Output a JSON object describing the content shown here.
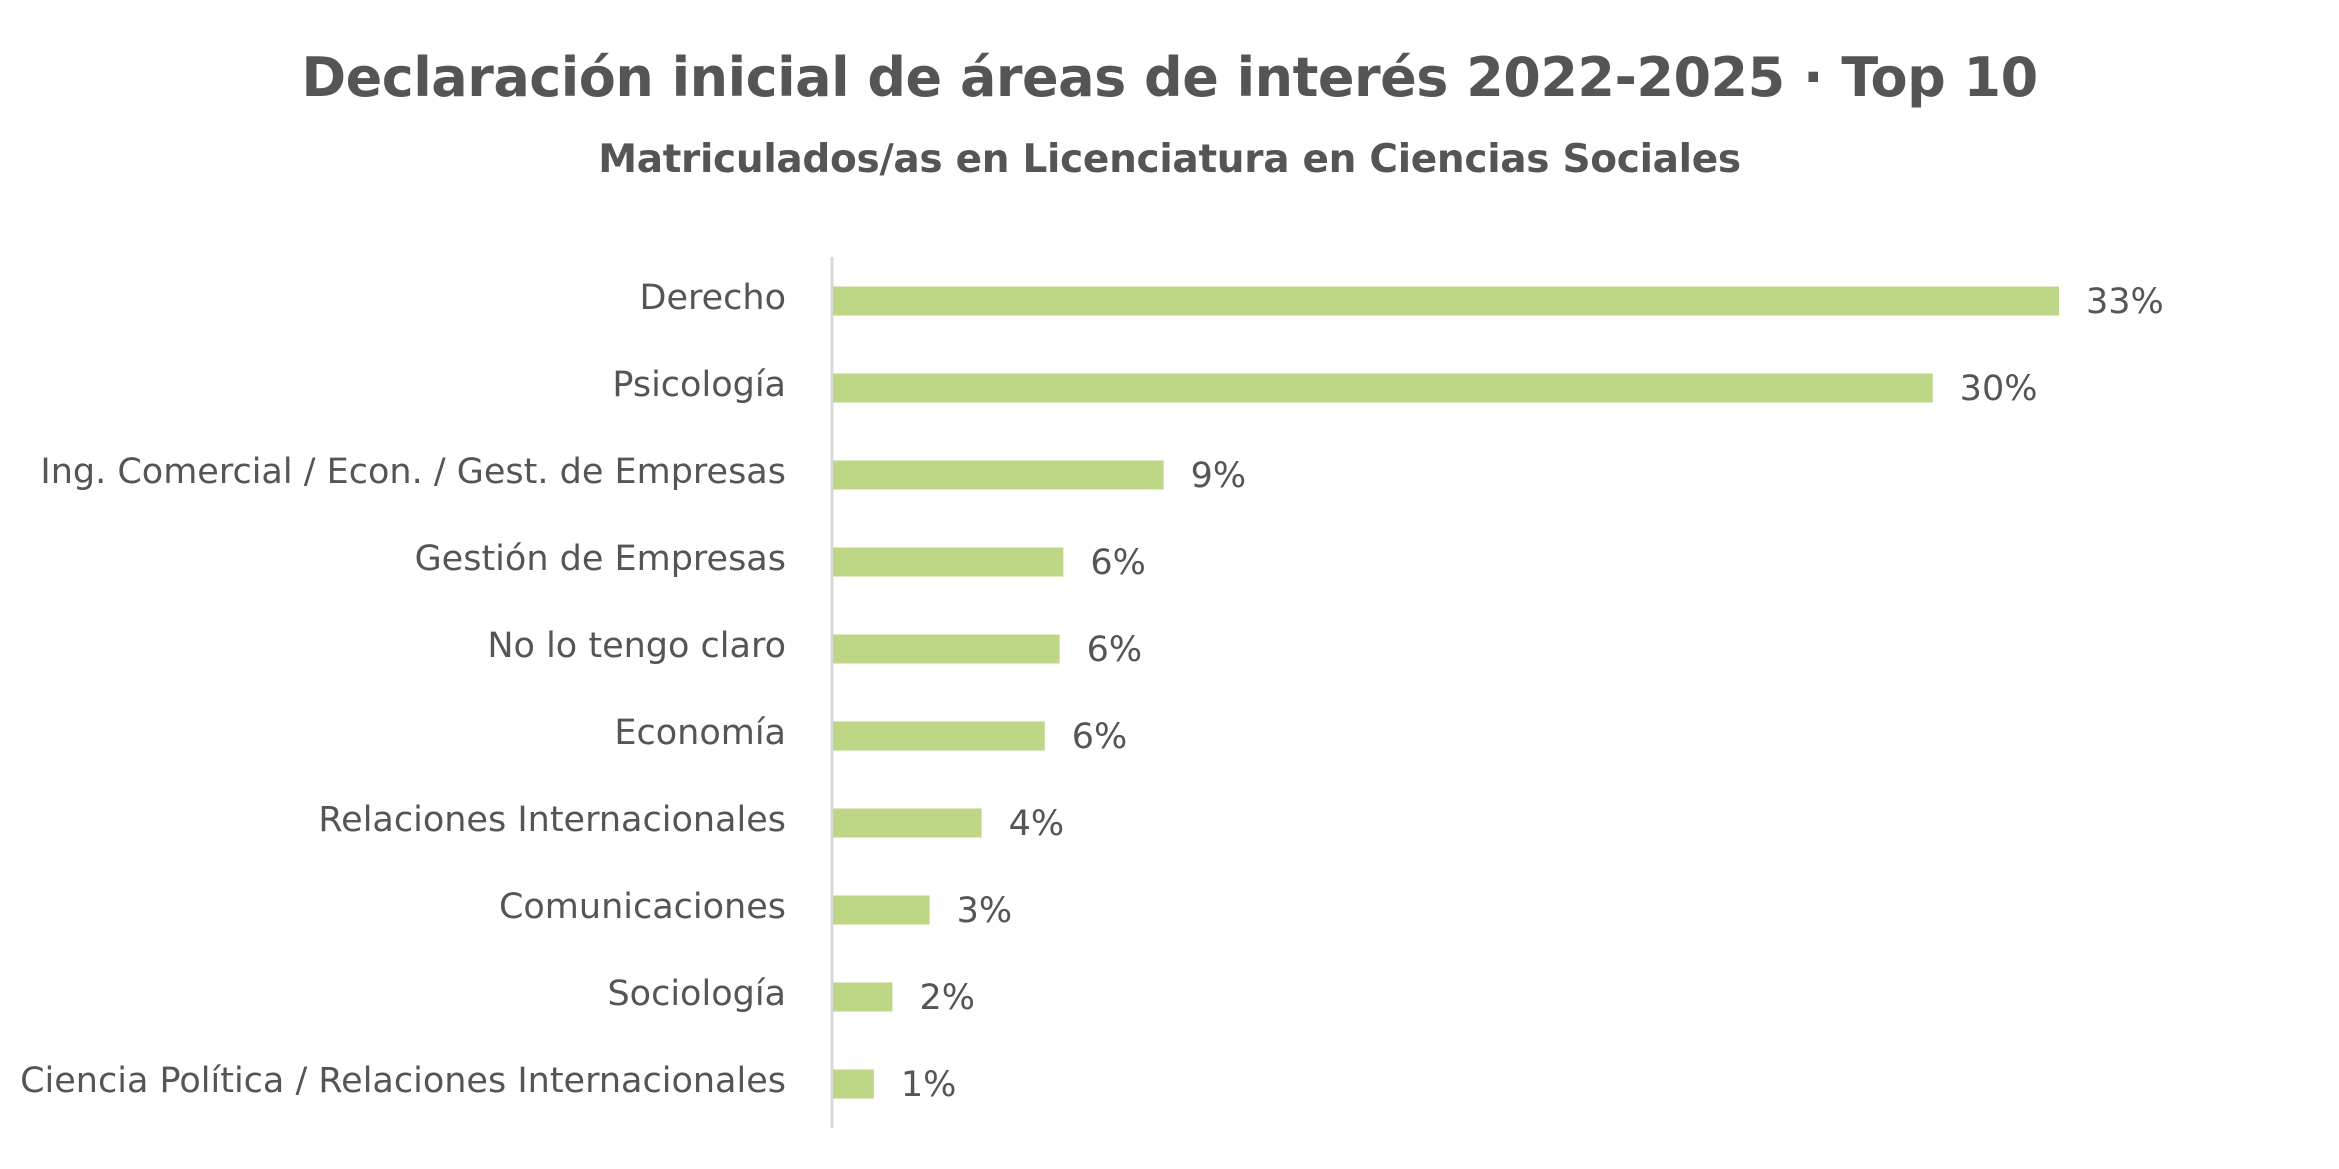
{
  "chart_data": {
    "type": "bar",
    "orientation": "horizontal",
    "title": "Declaración inicial de áreas de interés 2022-2025 · Top 10",
    "subtitle": "Matriculados/as en Licenciatura en Ciencias Sociales",
    "categories": [
      "Derecho",
      "Psicología",
      "Ing. Comercial / Econ. / Gest. de Empresas",
      "Gestión de Empresas",
      "No lo tengo claro",
      "Economía",
      "Relaciones Internacionales",
      "Comunicaciones",
      "Sociología",
      "Ciencia Política / Relaciones Internacionales"
    ],
    "values": [
      33.0,
      29.6,
      8.9,
      6.2,
      6.1,
      5.7,
      4.0,
      2.6,
      1.6,
      1.1
    ],
    "value_labels": [
      "33%",
      "30%",
      "9%",
      "6%",
      "6%",
      "6%",
      "4%",
      "3%",
      "2%",
      "1%"
    ],
    "xlim": [
      0,
      33
    ],
    "bar_color": "#bed786",
    "axis_color": "#d9d9d9",
    "text_color": "#555555",
    "grid": false,
    "legend": "none"
  }
}
